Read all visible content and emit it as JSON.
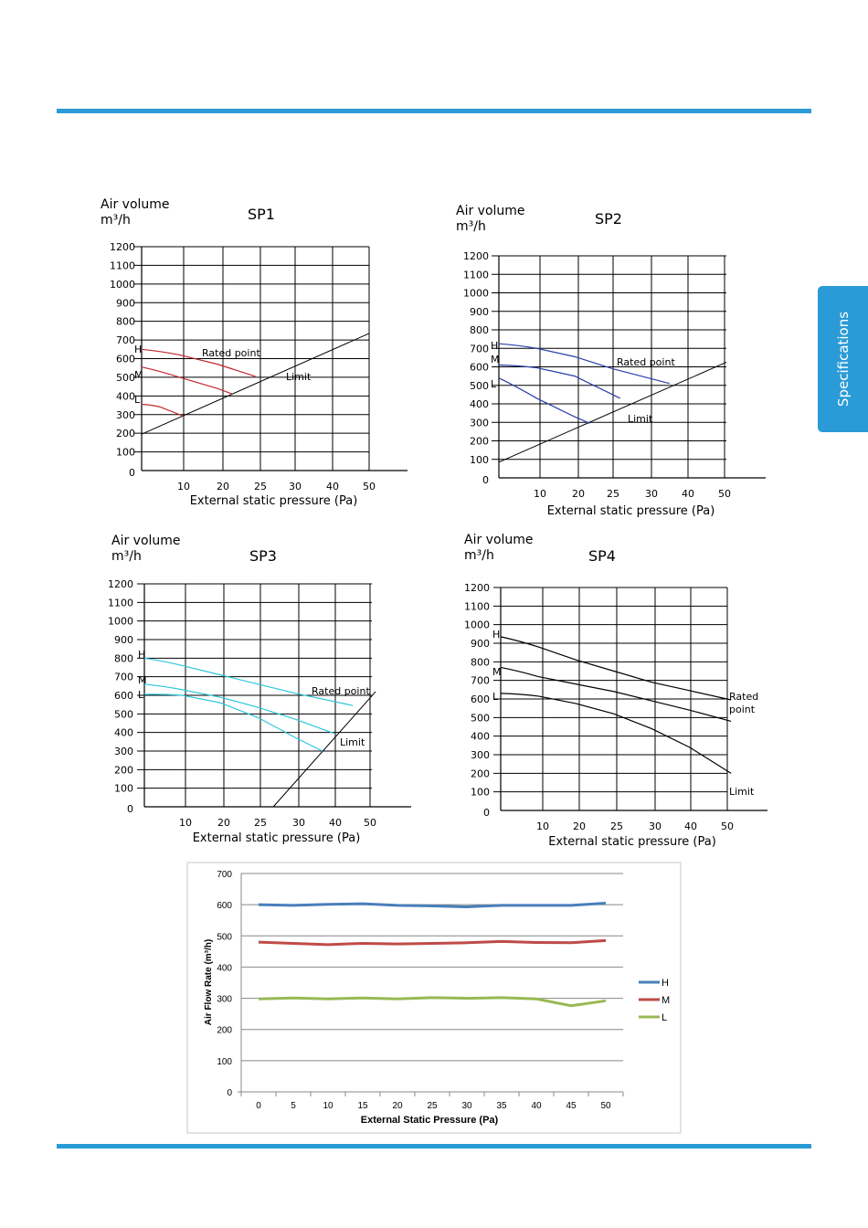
{
  "side_tab": {
    "label": "Specifications"
  },
  "chart_data": [
    {
      "type": "line",
      "title": "SP1",
      "ylabel": [
        "Air volume",
        "m³/h"
      ],
      "xlabel": "External static pressure (Pa)",
      "x_ticks": [
        10,
        20,
        25,
        30,
        40,
        50
      ],
      "y_ticks": [
        0,
        100,
        200,
        300,
        400,
        500,
        600,
        700,
        800,
        900,
        1000,
        1100,
        1200
      ],
      "xlim": [
        0,
        60
      ],
      "ylim": [
        0,
        1200
      ],
      "color": "#c0282c",
      "series": [
        {
          "name": "H",
          "x": [
            0,
            10,
            20,
            30
          ],
          "y": [
            650,
            620,
            570,
            505
          ]
        },
        {
          "name": "M",
          "x": [
            0,
            10,
            20,
            24
          ],
          "y": [
            555,
            500,
            440,
            410
          ]
        },
        {
          "name": "L",
          "x": [
            0,
            5,
            10,
            11
          ],
          "y": [
            355,
            340,
            300,
            290
          ]
        }
      ],
      "limit_line": {
        "x": [
          0,
          60
        ],
        "y": [
          195,
          735
        ]
      },
      "annotations": [
        "Rated point",
        "Limit"
      ]
    },
    {
      "type": "line",
      "title": "SP2",
      "ylabel": [
        "Air volume",
        "m³/h"
      ],
      "xlabel": "External static pressure (Pa)",
      "x_ticks": [
        10,
        20,
        25,
        30,
        40,
        50
      ],
      "y_ticks": [
        0,
        100,
        200,
        300,
        400,
        500,
        600,
        700,
        800,
        900,
        1000,
        1100,
        1200
      ],
      "xlim": [
        0,
        60
      ],
      "ylim": [
        0,
        1200
      ],
      "color": "#2b3fa8",
      "series": [
        {
          "name": "H",
          "x": [
            0,
            10,
            20,
            30,
            45
          ],
          "y": [
            725,
            700,
            655,
            590,
            510
          ]
        },
        {
          "name": "M",
          "x": [
            0,
            10,
            20,
            32
          ],
          "y": [
            610,
            595,
            550,
            430
          ]
        },
        {
          "name": "L",
          "x": [
            0,
            10,
            20,
            24
          ],
          "y": [
            540,
            430,
            330,
            295
          ]
        }
      ],
      "limit_line": {
        "x": [
          0,
          60
        ],
        "y": [
          85,
          625
        ]
      },
      "annotations": [
        "Rated point",
        "Limit"
      ]
    },
    {
      "type": "line",
      "title": "SP3",
      "ylabel": [
        "Air volume",
        "m³/h"
      ],
      "xlabel": "External static pressure (Pa)",
      "x_ticks": [
        10,
        20,
        25,
        30,
        40,
        50
      ],
      "y_ticks": [
        0,
        100,
        200,
        300,
        400,
        500,
        600,
        700,
        800,
        900,
        1000,
        1100,
        1200
      ],
      "xlim": [
        0,
        60
      ],
      "ylim": [
        0,
        1200
      ],
      "color": "#2cc6dc",
      "series": [
        {
          "name": "H",
          "x": [
            0,
            10,
            20,
            30,
            40,
            55
          ],
          "y": [
            800,
            760,
            710,
            660,
            610,
            545
          ]
        },
        {
          "name": "M",
          "x": [
            0,
            10,
            20,
            30,
            40,
            50
          ],
          "y": [
            660,
            630,
            590,
            535,
            470,
            395
          ]
        },
        {
          "name": "L",
          "x": [
            0,
            10,
            20,
            30,
            40,
            47
          ],
          "y": [
            605,
            600,
            560,
            480,
            370,
            300
          ]
        }
      ],
      "limit_line": {
        "x": [
          34,
          61
        ],
        "y": [
          0,
          620
        ]
      },
      "annotations": [
        "Rated point",
        "Limit"
      ]
    },
    {
      "type": "line",
      "title": "SP4",
      "ylabel": [
        "Air volume",
        "m³/h"
      ],
      "xlabel": "External static pressure (Pa)",
      "x_ticks": [
        10,
        20,
        25,
        30,
        40,
        50
      ],
      "y_ticks": [
        0,
        100,
        200,
        300,
        400,
        500,
        600,
        700,
        800,
        900,
        1000,
        1100,
        1200
      ],
      "xlim": [
        0,
        60
      ],
      "ylim": [
        0,
        1200
      ],
      "color": "#000000",
      "series": [
        {
          "name": "H",
          "x": [
            0,
            10,
            20,
            30,
            40,
            50,
            61
          ],
          "y": [
            935,
            880,
            810,
            750,
            690,
            645,
            595
          ]
        },
        {
          "name": "M",
          "x": [
            0,
            10,
            20,
            30,
            40,
            50,
            61
          ],
          "y": [
            770,
            720,
            680,
            640,
            590,
            540,
            480
          ]
        },
        {
          "name": "L",
          "x": [
            0,
            10,
            20,
            30,
            40,
            50,
            61
          ],
          "y": [
            630,
            615,
            575,
            520,
            440,
            340,
            200
          ]
        }
      ],
      "annotations": [
        "Rated",
        "point",
        "Limit"
      ]
    },
    {
      "type": "line",
      "title": "",
      "ylabel": "Air Flow Rate (m³/h)",
      "xlabel": "External Static Pressure (Pa)",
      "categories": [
        0,
        5,
        10,
        15,
        20,
        25,
        30,
        35,
        40,
        45,
        50
      ],
      "y_ticks": [
        0,
        100,
        200,
        300,
        400,
        500,
        600,
        700
      ],
      "ylim": [
        0,
        700
      ],
      "grid": "horizontal",
      "legend": "right",
      "series": [
        {
          "name": "H",
          "color": "#4a7ebb",
          "values": [
            600,
            598,
            601,
            603,
            598,
            596,
            593,
            598,
            598,
            598,
            605
          ]
        },
        {
          "name": "M",
          "color": "#be4b48",
          "values": [
            480,
            476,
            472,
            476,
            474,
            476,
            478,
            482,
            479,
            478,
            485
          ]
        },
        {
          "name": "L",
          "color": "#98b954",
          "values": [
            298,
            301,
            298,
            301,
            298,
            302,
            300,
            302,
            298,
            276,
            292
          ]
        }
      ]
    }
  ]
}
